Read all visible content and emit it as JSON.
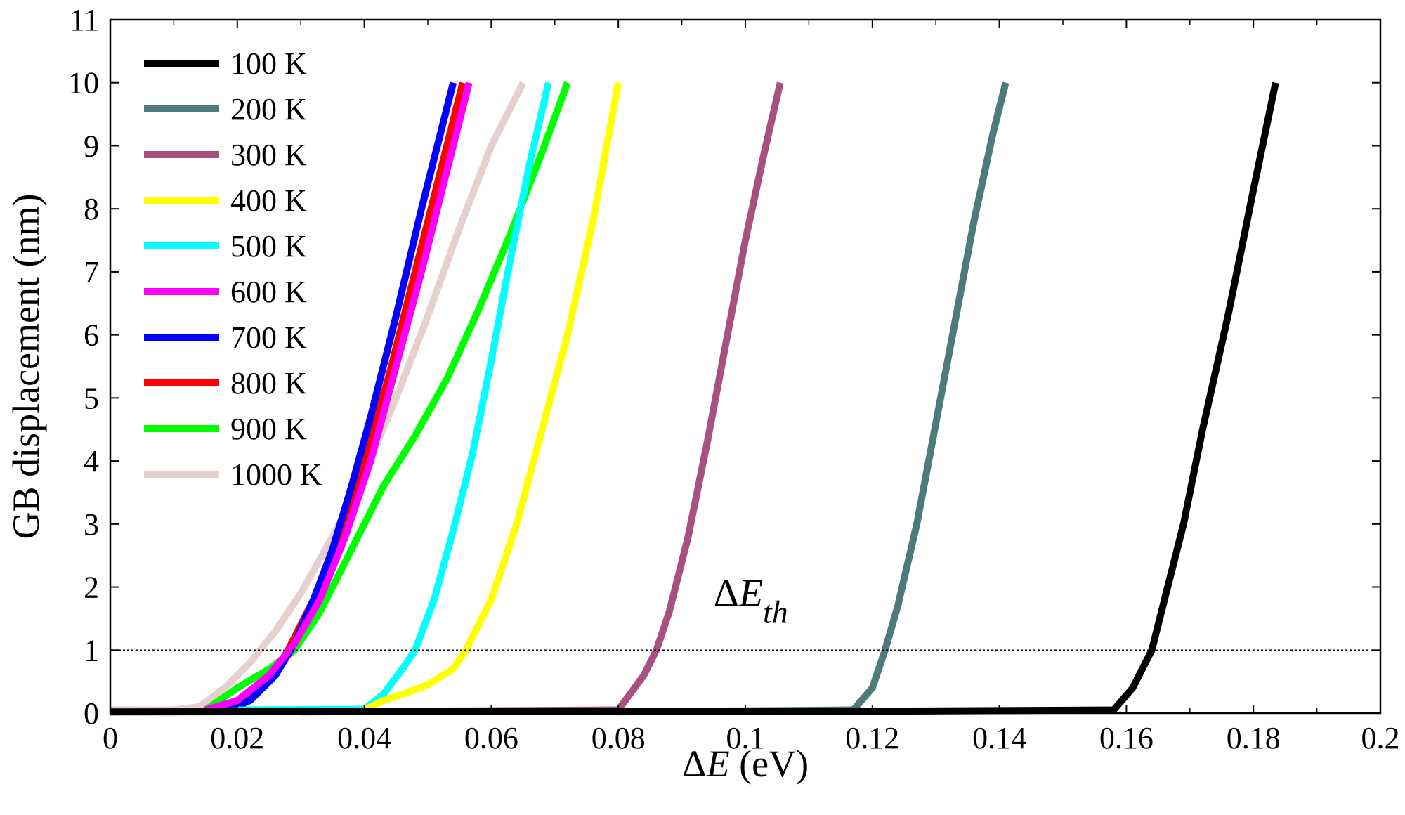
{
  "chart_data": {
    "type": "line",
    "title": "",
    "xlabel": {
      "prefix": "Δ",
      "var": "E",
      "suffix": " (eV)"
    },
    "ylabel": "GB displacement (nm)",
    "xlim": [
      0,
      0.2
    ],
    "ylim": [
      0,
      11
    ],
    "xticks": [
      0,
      0.02,
      0.04,
      0.06,
      0.08,
      0.1,
      0.12,
      0.14,
      0.16,
      0.18,
      0.2
    ],
    "xtick_labels": [
      "0",
      "0.02",
      "0.04",
      "0.06",
      "0.08",
      "0.1",
      "0.12",
      "0.14",
      "0.16",
      "0.18",
      "0.2"
    ],
    "yticks": [
      0,
      1,
      2,
      3,
      4,
      5,
      6,
      7,
      8,
      9,
      10,
      11
    ],
    "ytick_labels": [
      "0",
      "1",
      "2",
      "3",
      "4",
      "5",
      "6",
      "7",
      "8",
      "9",
      "10",
      "11"
    ],
    "grid": false,
    "legend_position": "top-left",
    "threshold_line": {
      "y": 1,
      "style": "dotted"
    },
    "annotation": {
      "prefix": "Δ",
      "var": "E",
      "sub": "th",
      "x": 0.095,
      "y": 1.7
    },
    "series": [
      {
        "name": "100 K",
        "color": "#000000",
        "x": [
          0,
          0.12,
          0.158,
          0.161,
          0.164,
          0.166,
          0.169,
          0.172,
          0.176,
          0.18,
          0.1835
        ],
        "y": [
          0.02,
          0.03,
          0.05,
          0.4,
          1.0,
          1.8,
          3.0,
          4.5,
          6.3,
          8.3,
          10.0
        ]
      },
      {
        "name": "200 K",
        "color": "#4f7a7b",
        "x": [
          0.08,
          0.117,
          0.12,
          0.122,
          0.124,
          0.127,
          0.13,
          0.133,
          0.136,
          0.139,
          0.141
        ],
        "y": [
          0.02,
          0.05,
          0.4,
          1.0,
          1.7,
          3.0,
          4.6,
          6.2,
          7.8,
          9.2,
          10.0
        ]
      },
      {
        "name": "300 K",
        "color": "#a8507e",
        "x": [
          0.03,
          0.08,
          0.084,
          0.086,
          0.088,
          0.091,
          0.094,
          0.097,
          0.1,
          0.103,
          0.1055
        ],
        "y": [
          0.02,
          0.05,
          0.6,
          1.0,
          1.6,
          2.8,
          4.3,
          5.9,
          7.5,
          8.9,
          10.0
        ]
      },
      {
        "name": "400 K",
        "color": "#ffff00",
        "x": [
          0.04,
          0.043,
          0.046,
          0.05,
          0.054,
          0.056,
          0.06,
          0.064,
          0.068,
          0.072,
          0.076,
          0.08
        ],
        "y": [
          0.05,
          0.2,
          0.3,
          0.45,
          0.7,
          1.0,
          1.8,
          3.0,
          4.5,
          6.0,
          7.8,
          10.0
        ]
      },
      {
        "name": "500 K",
        "color": "#00ffff",
        "x": [
          0.02,
          0.04,
          0.043,
          0.046,
          0.048,
          0.051,
          0.054,
          0.057,
          0.06,
          0.063,
          0.066,
          0.069
        ],
        "y": [
          0.05,
          0.06,
          0.3,
          0.7,
          1.0,
          1.8,
          2.9,
          4.1,
          5.6,
          7.2,
          8.7,
          10.0
        ]
      },
      {
        "name": "600 K",
        "color": "#ff00ff",
        "x": [
          0.015,
          0.02,
          0.025,
          0.029,
          0.033,
          0.037,
          0.041,
          0.045,
          0.049,
          0.053,
          0.0565
        ],
        "y": [
          0.05,
          0.2,
          0.6,
          1.1,
          1.8,
          2.8,
          4.0,
          5.5,
          7.0,
          8.6,
          10.0
        ]
      },
      {
        "name": "700 K",
        "color": "#0000ff",
        "x": [
          0.018,
          0.022,
          0.026,
          0.029,
          0.032,
          0.035,
          0.038,
          0.041,
          0.045,
          0.049,
          0.054
        ],
        "y": [
          0.05,
          0.2,
          0.6,
          1.1,
          1.8,
          2.6,
          3.6,
          4.7,
          6.3,
          8.0,
          10.0
        ]
      },
      {
        "name": "800 K",
        "color": "#ff0000",
        "x": [
          0.016,
          0.021,
          0.025,
          0.028,
          0.032,
          0.036,
          0.04,
          0.044,
          0.048,
          0.052,
          0.0555
        ],
        "y": [
          0.02,
          0.15,
          0.5,
          1.0,
          1.8,
          2.8,
          4.0,
          5.4,
          7.0,
          8.6,
          10.0
        ]
      },
      {
        "name": "900 K",
        "color": "#00ff00",
        "x": [
          0.015,
          0.02,
          0.025,
          0.029,
          0.033,
          0.038,
          0.043,
          0.048,
          0.053,
          0.058,
          0.063,
          0.068,
          0.072
        ],
        "y": [
          0.05,
          0.4,
          0.7,
          1.0,
          1.6,
          2.6,
          3.6,
          4.4,
          5.3,
          6.4,
          7.6,
          8.9,
          10.0
        ]
      },
      {
        "name": "1000 K",
        "color": "#e6cfcf",
        "x": [
          0,
          0.01,
          0.014,
          0.018,
          0.022,
          0.026,
          0.03,
          0.035,
          0.04,
          0.045,
          0.05,
          0.055,
          0.06,
          0.065
        ],
        "y": [
          0.05,
          0.05,
          0.1,
          0.4,
          0.8,
          1.3,
          1.9,
          2.8,
          3.8,
          5.0,
          6.3,
          7.7,
          9.0,
          10.0
        ]
      }
    ]
  }
}
